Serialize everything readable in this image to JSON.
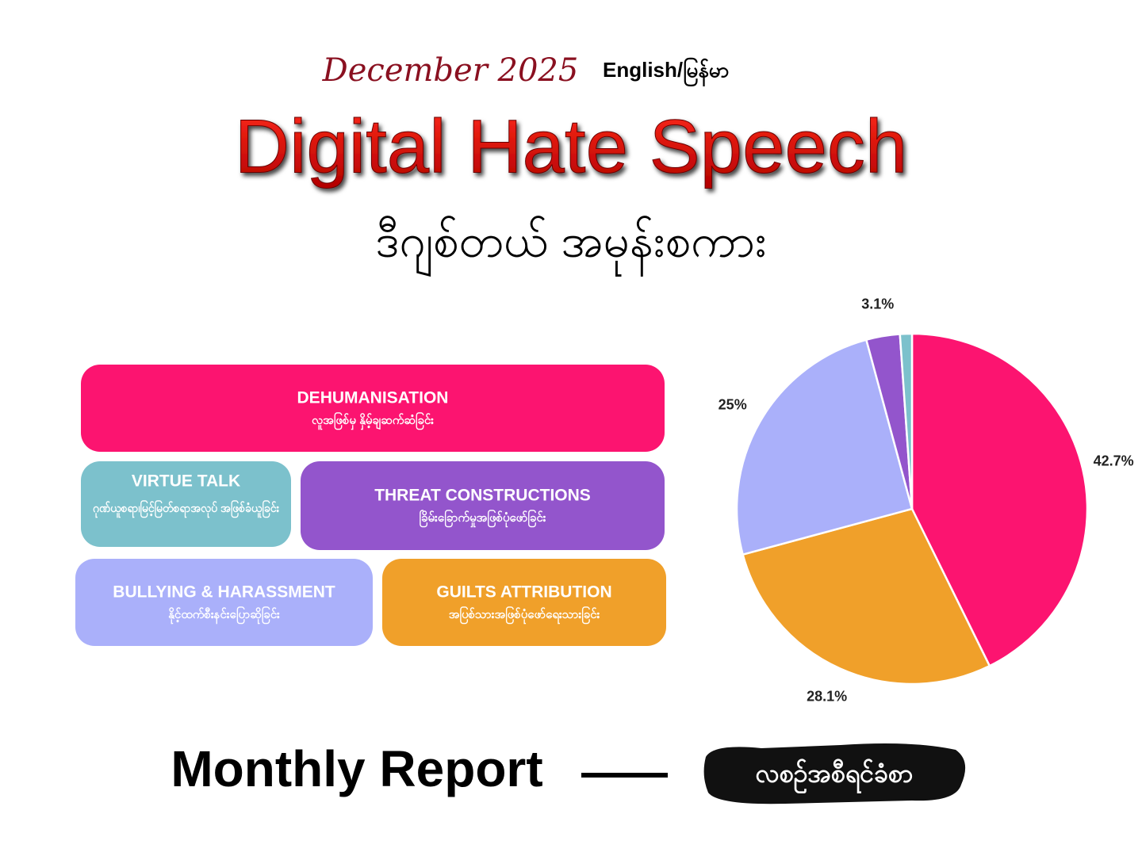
{
  "header": {
    "date": "December 2025",
    "language": "English/မြန်မာ",
    "title": "Digital Hate Speech",
    "title_my": "ဒီဂျစ်တယ် အမုန်းစကား"
  },
  "chart_data": {
    "type": "pie",
    "categories": [
      "DEHUMANISATION",
      "GUILTS ATTRIBUTION",
      "BULLYING & HARASSMENT",
      "THREAT CONSTRUCTIONS",
      "VIRTUE TALK"
    ],
    "category_translations": [
      "လူအဖြစ်မှ နှိမ့်ချဆက်ဆံခြင်း",
      "အပြစ်သားအဖြစ်ပုံဖော်ရေးသားခြင်း",
      "နိုင့်ထက်စီးနင်းပြောဆိုခြင်း",
      "ခြိမ်းခြောက်မှုအဖြစ်ပုံဖော်ခြင်း",
      "ဂုဏ်ယူစရာ၊မြင့်မြတ်စရာအလုပ် အဖြစ်ခံယူခြင်း"
    ],
    "values": [
      42.7,
      28.1,
      25,
      3.1,
      1.1
    ],
    "value_labels": [
      "42.7%",
      "28.1%",
      "25%",
      "3.1%",
      null
    ],
    "colors": [
      "#fc1470",
      "#f0a02a",
      "#aab0fa",
      "#9355cc",
      "#7cc1cc"
    ]
  },
  "footer": {
    "title": "Monthly Report",
    "title_my": "လစဉ်အစီရင်ခံစာ"
  }
}
